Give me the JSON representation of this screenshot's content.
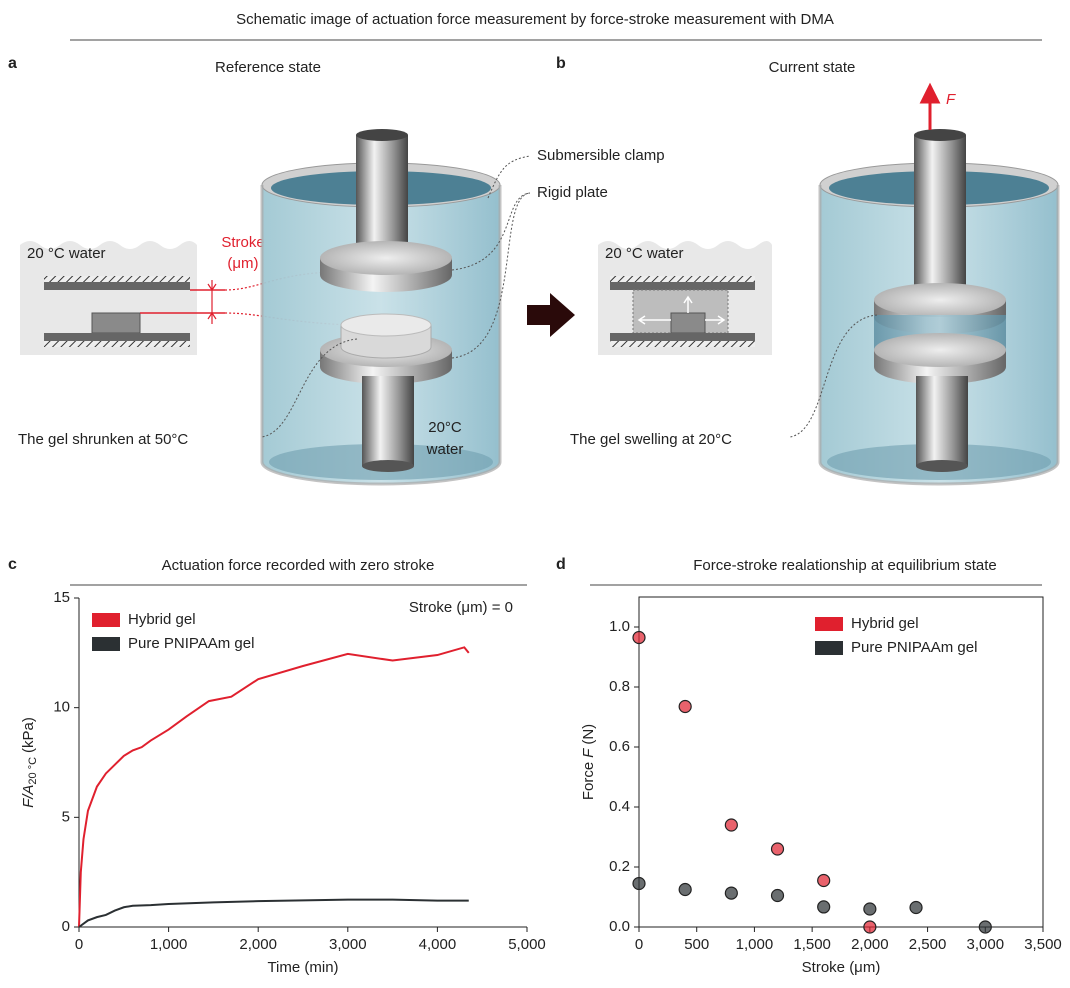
{
  "title": "Schematic image of actuation force measurement by force-stroke measurement with DMA",
  "panels": {
    "a": {
      "label": "a",
      "heading": "Reference state",
      "inset_text": "20 °C water",
      "stroke_label": [
        "Stroke",
        "(μm)"
      ],
      "callouts": [
        "Submersible clamp",
        "Rigid plate",
        "The gel shrunken at 50°C"
      ],
      "water_label": [
        "20°C",
        "water"
      ]
    },
    "b": {
      "label": "b",
      "heading": "Current state",
      "inset_text": "20 °C water",
      "force_label": "F",
      "callouts": [
        "The gel swelling at 20°C"
      ]
    },
    "c": {
      "label": "c"
    },
    "d": {
      "label": "d"
    }
  },
  "chart_data": [
    {
      "type": "line",
      "title": "Actuation force recorded with zero stroke",
      "annotation": "Stroke (μm) = 0",
      "xlabel": "Time (min)",
      "ylabel": [
        "F/A",
        "20 °C",
        "(kPa)"
      ],
      "legend": "upper left",
      "xlim": [
        0,
        5000
      ],
      "ylim": [
        0,
        15
      ],
      "xticks": [
        0,
        {
          "value": 1000,
          "label": "1,000"
        },
        {
          "value": 2000,
          "label": "2,000"
        },
        {
          "value": 3000,
          "label": "3,000"
        },
        {
          "value": 4000,
          "label": "4,000"
        },
        {
          "value": 5000,
          "label": "5,000"
        }
      ],
      "yticks": [
        0,
        5,
        10,
        15
      ],
      "series": [
        {
          "name": "Hybrid gel",
          "color": "#e0202e",
          "x": [
            0,
            20,
            50,
            100,
            200,
            300,
            400,
            500,
            600,
            700,
            800,
            1000,
            1200,
            1450,
            1700,
            2000,
            2500,
            3000,
            3500,
            4000,
            4300,
            4350
          ],
          "values": [
            0,
            2.5,
            4,
            5.3,
            6.4,
            7,
            7.4,
            7.8,
            8.05,
            8.2,
            8.5,
            9,
            9.6,
            10.3,
            10.5,
            11.3,
            11.9,
            12.45,
            12.15,
            12.4,
            12.75,
            12.5
          ]
        },
        {
          "name": "Pure PNIPAAm gel",
          "color": "#2b3033",
          "x": [
            0,
            100,
            200,
            300,
            400,
            500,
            600,
            800,
            1000,
            1500,
            2000,
            3000,
            3500,
            4000,
            4350
          ],
          "values": [
            0,
            0.3,
            0.45,
            0.55,
            0.75,
            0.9,
            0.97,
            1.0,
            1.05,
            1.12,
            1.18,
            1.25,
            1.25,
            1.2,
            1.2
          ]
        }
      ]
    },
    {
      "type": "scatter",
      "title": "Force-stroke realationship at equilibrium state",
      "xlabel": "Stroke (μm)",
      "ylabel": [
        "Force",
        "F",
        "(N)"
      ],
      "legend": "upper right",
      "box": true,
      "xlim": [
        0,
        3500
      ],
      "ylim": [
        0,
        1.1
      ],
      "xticks": [
        0,
        500,
        {
          "value": 1000,
          "label": "1,000"
        },
        {
          "value": 1500,
          "label": "1,500"
        },
        {
          "value": 2000,
          "label": "2,000"
        },
        {
          "value": 2500,
          "label": "2,500"
        },
        {
          "value": 3000,
          "label": "3,000"
        },
        {
          "value": 3500,
          "label": "3,500"
        }
      ],
      "yticks": [
        {
          "value": 0,
          "label": "0.0"
        },
        0.2,
        0.4,
        0.6,
        0.8,
        {
          "value": 1,
          "label": "1.0"
        }
      ],
      "series": [
        {
          "name": "Hybrid gel",
          "color": "#e0202e",
          "x": [
            0,
            400,
            800,
            1200,
            1600,
            2000
          ],
          "values": [
            0.965,
            0.735,
            0.34,
            0.26,
            0.155,
            0
          ]
        },
        {
          "name": "Pure PNIPAAm gel",
          "color": "#2b3033",
          "x": [
            0,
            400,
            800,
            1200,
            1600,
            2000,
            2400,
            3000
          ],
          "values": [
            0.145,
            0.125,
            0.113,
            0.105,
            0.067,
            0.06,
            0.065,
            0
          ]
        }
      ]
    }
  ]
}
